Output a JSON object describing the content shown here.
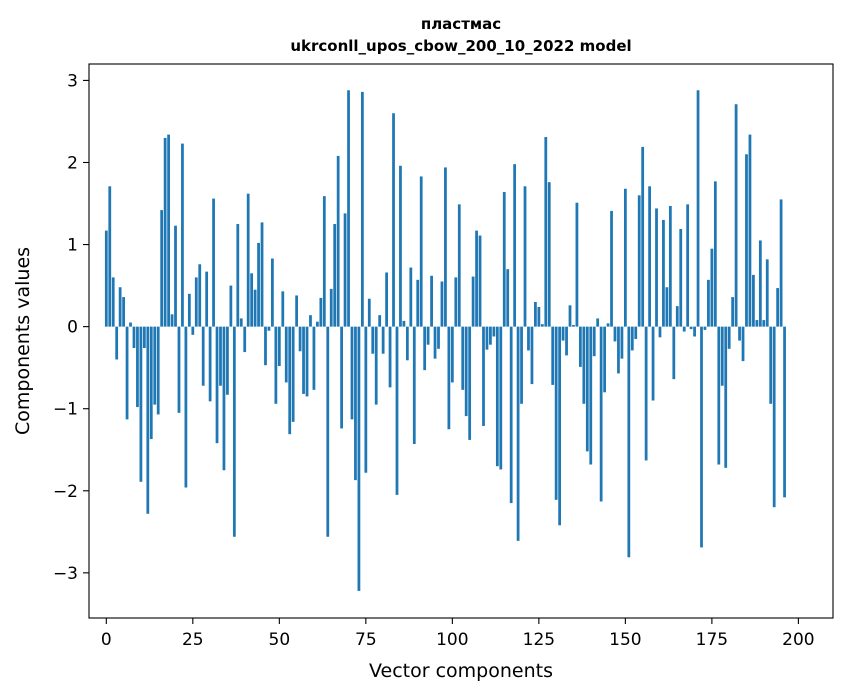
{
  "chart_data": {
    "type": "bar",
    "title": "пластмас",
    "subtitle": "ukrconll_upos_cbow_200_10_2022 model",
    "xlabel": "Vector components",
    "ylabel": "Components values",
    "xlim": [
      -5,
      210
    ],
    "ylim": [
      -3.55,
      3.2
    ],
    "x_ticks": [
      0,
      25,
      50,
      75,
      100,
      125,
      150,
      175,
      200
    ],
    "y_ticks": [
      -3,
      -2,
      -1,
      0,
      1,
      2,
      3
    ],
    "y_tick_labels": [
      "−3",
      "−2",
      "−1",
      "0",
      "1",
      "2",
      "3"
    ],
    "bar_color": "#1f77b4",
    "grid": false,
    "series": [
      {
        "values": [
          1.17,
          1.71,
          0.6,
          -0.4,
          0.48,
          0.36,
          -1.13,
          0.05,
          -0.26,
          -0.98,
          -1.89,
          -0.26,
          -2.28,
          -1.37,
          -0.95,
          -1.07,
          1.42,
          2.3,
          2.34,
          0.15,
          1.23,
          -1.05,
          2.23,
          -1.96,
          0.4,
          -0.1,
          0.6,
          0.76,
          -0.72,
          0.67,
          -0.91,
          1.56,
          -1.42,
          -0.72,
          -1.75,
          -0.83,
          0.5,
          -2.56,
          1.25,
          0.1,
          -0.31,
          1.62,
          0.65,
          0.45,
          1.02,
          1.27,
          -0.47,
          -0.05,
          0.83,
          -0.94,
          -0.48,
          0.43,
          -0.68,
          -1.31,
          -1.16,
          0.38,
          -0.3,
          -0.82,
          -0.85,
          0.14,
          -0.77,
          0.06,
          0.35,
          1.59,
          -2.56,
          0.46,
          1.25,
          2.08,
          -1.24,
          1.38,
          2.88,
          -1.13,
          -1.87,
          -3.22,
          2.86,
          -1.78,
          0.34,
          -0.33,
          -0.95,
          0.14,
          -0.33,
          0.66,
          -0.74,
          2.6,
          -2.05,
          1.96,
          0.07,
          -0.41,
          0.72,
          -1.43,
          0.57,
          1.83,
          -0.53,
          -0.22,
          0.62,
          -0.39,
          -0.27,
          0.55,
          1.94,
          -1.25,
          -0.68,
          0.6,
          1.49,
          -0.77,
          -1.09,
          -1.38,
          0.61,
          1.17,
          1.11,
          -1.21,
          -0.28,
          -0.22,
          -0.12,
          -1.7,
          -1.74,
          1.64,
          0.7,
          -2.15,
          1.98,
          -2.61,
          -0.94,
          1.71,
          -0.29,
          -0.7,
          0.3,
          0.24,
          0.03,
          2.31,
          1.76,
          -0.71,
          -2.11,
          -2.42,
          -0.17,
          -0.35,
          0.26,
          0.02,
          1.51,
          -0.49,
          -0.94,
          -1.52,
          -1.68,
          -0.36,
          0.1,
          -2.13,
          -0.8,
          0.04,
          1.41,
          -0.18,
          -0.57,
          -0.39,
          1.68,
          -2.81,
          -0.29,
          -0.15,
          1.6,
          2.19,
          -1.63,
          1.71,
          -0.9,
          1.44,
          -0.13,
          1.3,
          0.48,
          1.47,
          -0.64,
          0.25,
          1.19,
          -0.06,
          1.49,
          -0.03,
          -0.12,
          2.88,
          -2.69,
          -0.04,
          0.57,
          0.95,
          1.77,
          -1.68,
          -0.72,
          -1.72,
          -0.27,
          0.36,
          2.71,
          -0.17,
          -0.42,
          2.1,
          2.34,
          0.63,
          0.08,
          1.05,
          0.08,
          0.82,
          -0.94,
          -2.2,
          0.47,
          1.55,
          -2.08
        ]
      }
    ]
  }
}
